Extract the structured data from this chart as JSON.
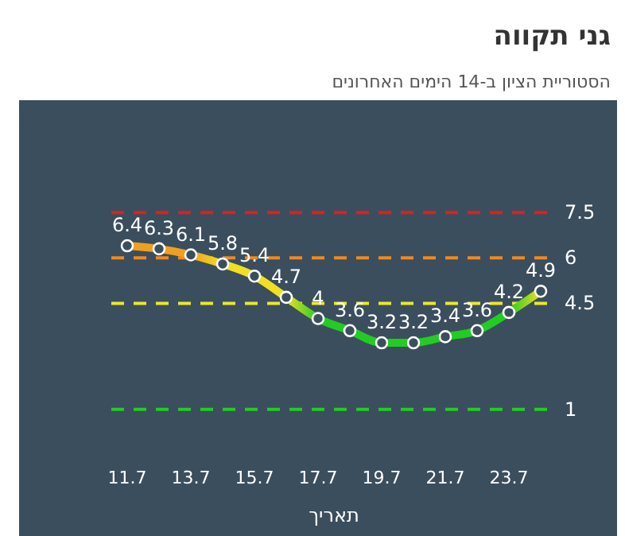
{
  "chart_data": {
    "type": "line",
    "title": "גני תקווה",
    "subtitle": "הסטוריית הציון ב-14 הימים האחרונים",
    "xlabel": "תאריך",
    "categories": [
      "11.7",
      null,
      "13.7",
      null,
      "15.7",
      null,
      "17.7",
      null,
      "19.7",
      null,
      "21.7",
      null,
      "23.7",
      null
    ],
    "series": [
      {
        "colors": [
          "#f0a020",
          "#f0a020",
          "#f0a020",
          "#f0e020",
          "#f0e020",
          "#f0e020",
          "#22cc22",
          "#22cc22",
          "#22cc22",
          "#22cc22",
          "#22cc22",
          "#22cc22",
          "#22cc22",
          "#f0e020"
        ],
        "values": [
          6.4,
          6.3,
          6.1,
          5.8,
          5.4,
          4.7,
          4,
          3.6,
          3.2,
          3.2,
          3.4,
          3.6,
          4.2,
          4.9
        ]
      }
    ],
    "ref_lines": [
      {
        "axis": "y",
        "value": 7.5,
        "label": "7.5",
        "color": "#dd2020",
        "line_style": "dashed"
      },
      {
        "axis": "y",
        "value": 6,
        "label": "6",
        "color": "#f08a20",
        "line_style": "dashed"
      },
      {
        "axis": "y",
        "value": 4.5,
        "label": "4.5",
        "color": "#e8e830",
        "line_style": "dashed"
      },
      {
        "axis": "y",
        "value": 1,
        "label": "1",
        "color": "#22cc22",
        "line_style": "dashed"
      }
    ],
    "data_labels": true,
    "marker": "circle",
    "line_style": "solid",
    "grid": false
  }
}
